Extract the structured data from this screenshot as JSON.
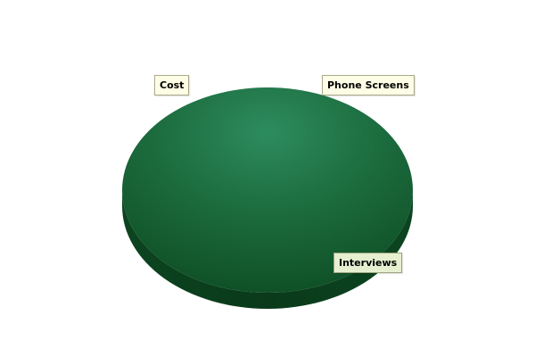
{
  "chart_data": {
    "type": "pie",
    "title": "",
    "categories": [
      "Cost",
      "Phone Screens",
      "Interviews"
    ],
    "values": [
      0,
      0,
      100
    ],
    "colors": {
      "slice_top_light": "#2b8a5c",
      "slice_top_mid": "#1a6a3b",
      "slice_top_dark": "#0f4f27",
      "slice_side": "#0a3a1a"
    },
    "legend": "none",
    "style": "3d"
  },
  "labels": {
    "cost": "Cost",
    "phone_screens": "Phone Screens",
    "interviews": "Interviews"
  }
}
